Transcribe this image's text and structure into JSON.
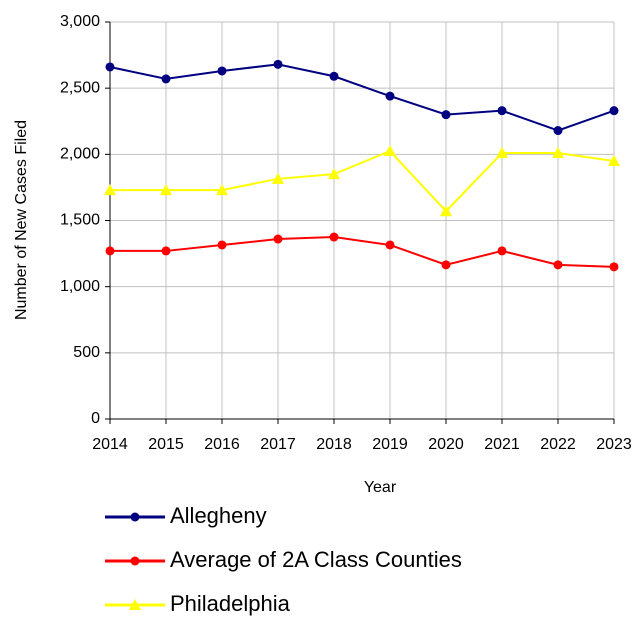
{
  "chart_data": {
    "type": "line",
    "x_label": "Year",
    "y_label": "Number of New Cases Filed",
    "categories": [
      "2014",
      "2015",
      "2016",
      "2017",
      "2018",
      "2019",
      "2020",
      "2021",
      "2022",
      "2023"
    ],
    "series": [
      {
        "name": "Allegheny",
        "color": "#000080",
        "marker": "circle",
        "values": [
          2660,
          2570,
          2630,
          2680,
          2590,
          2440,
          2300,
          2330,
          2180,
          2330
        ]
      },
      {
        "name": "Average of 2A Class Counties",
        "color": "#ff0000",
        "marker": "circle",
        "values": [
          1270,
          1270,
          1315,
          1360,
          1375,
          1315,
          1165,
          1270,
          1165,
          1150
        ]
      },
      {
        "name": "Philadelphia",
        "color": "#ffff00",
        "marker": "triangle",
        "values": [
          1730,
          1730,
          1730,
          1815,
          1850,
          2025,
          1570,
          2010,
          2010,
          1950
        ]
      }
    ],
    "ylim": [
      0,
      3000
    ],
    "yticks": [
      0,
      500,
      {
        "value": 1000,
        "label": "1,000"
      },
      {
        "value": 1500,
        "label": "1,500"
      },
      {
        "value": 2000,
        "label": "2,000"
      },
      {
        "value": 2500,
        "label": "2,500"
      },
      {
        "value": 3000,
        "label": "3,000"
      }
    ],
    "grid": true,
    "legend": "bottom"
  }
}
